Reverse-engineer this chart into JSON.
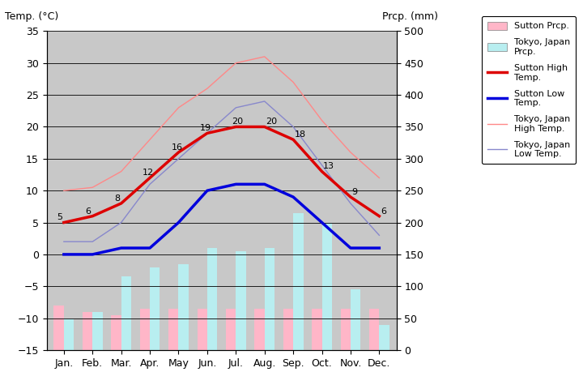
{
  "months": [
    "Jan.",
    "Feb.",
    "Mar.",
    "Apr.",
    "May",
    "Jun.",
    "Jul.",
    "Aug.",
    "Sep.",
    "Oct.",
    "Nov.",
    "Dec."
  ],
  "month_x": [
    0,
    1,
    2,
    3,
    4,
    5,
    6,
    7,
    8,
    9,
    10,
    11
  ],
  "sutton_high": [
    5,
    6,
    8,
    12,
    16,
    19,
    20,
    20,
    18,
    13,
    9,
    6
  ],
  "sutton_low": [
    0,
    0,
    1,
    1,
    5,
    10,
    11,
    11,
    9,
    5,
    1,
    1
  ],
  "tokyo_high": [
    10,
    10.5,
    13,
    18,
    23,
    26,
    30,
    31,
    27,
    21,
    16,
    12
  ],
  "tokyo_low": [
    2,
    2,
    5,
    11,
    15,
    19,
    23,
    24,
    20,
    14,
    8,
    3
  ],
  "sutton_prcp_mm": [
    70,
    60,
    55,
    65,
    65,
    65,
    65,
    65,
    65,
    65,
    65,
    65
  ],
  "tokyo_prcp_mm": [
    50,
    60,
    115,
    130,
    135,
    160,
    155,
    160,
    215,
    200,
    95,
    40
  ],
  "sutton_high_labels": [
    5,
    6,
    8,
    12,
    16,
    19,
    20,
    20,
    18,
    13,
    9,
    6
  ],
  "temp_ylim": [
    -15,
    35
  ],
  "prcp_ylim": [
    0,
    500
  ],
  "plot_bg_color": "#c8c8c8",
  "sutton_high_color": "#dd0000",
  "sutton_low_color": "#0000dd",
  "tokyo_high_color": "#ff8888",
  "tokyo_low_color": "#8888cc",
  "sutton_prcp_color": "#ffb6c8",
  "tokyo_prcp_color": "#b8eef0",
  "title_left": "Temp. (°C)",
  "title_right": "Prcp. (mm)"
}
